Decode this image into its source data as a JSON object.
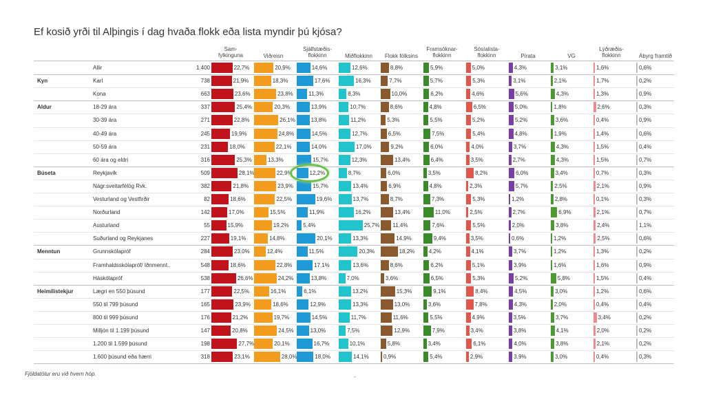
{
  "chart_data": {
    "type": "table",
    "title": "Ef kosið yrði til Alþingis í dag hvaða flokk eða lista myndir þú kjósa?",
    "footnote": "Fjöldatölur eru við hvern hóp.",
    "dash": "-",
    "parties": [
      {
        "name": "Sam-\nfylkinguna",
        "color": "#c0131c"
      },
      {
        "name": "Viðreisn",
        "color": "#f39c1e"
      },
      {
        "name": "Sjálfstæðis-\nflokkinn",
        "color": "#1f9ad6"
      },
      {
        "name": "Miðflokkinn",
        "color": "#22c4cb"
      },
      {
        "name": "Flokk fólksins",
        "color": "#8a5a2e"
      },
      {
        "name": "Framsóknar-\nflokkinn",
        "color": "#3a8a2a"
      },
      {
        "name": "Sósíalista-\nflokkinn",
        "color": "#e2574c"
      },
      {
        "name": "Pírata",
        "color": "#7a3ea8"
      },
      {
        "name": "VG",
        "color": "#4e9a32"
      },
      {
        "name": "Lýðræðis-\nflokkinn",
        "color": "#ec8a90"
      },
      {
        "name": "Ábyrg framtíð",
        "color": "#bbbbbb"
      }
    ],
    "rows": [
      {
        "group": "",
        "label": "Allir",
        "n": "1.400",
        "v": [
          22.7,
          20.9,
          14.6,
          12.6,
          8.8,
          5.9,
          5.0,
          4.3,
          3.1,
          1.6,
          0.6
        ]
      },
      {
        "group": "Kyn",
        "label": "Karl",
        "n": "738",
        "v": [
          21.9,
          18.3,
          17.6,
          16.3,
          7.7,
          5.7,
          5.3,
          3.1,
          2.1,
          1.7,
          0.2
        ]
      },
      {
        "group": "",
        "label": "Kona",
        "n": "663",
        "v": [
          23.6,
          23.8,
          11.3,
          8.3,
          10.0,
          6.2,
          4.6,
          5.6,
          4.3,
          1.3,
          0.9
        ]
      },
      {
        "group": "Aldur",
        "label": "18-29 ára",
        "n": "337",
        "v": [
          25.4,
          20.3,
          13.9,
          10.7,
          8.6,
          4.8,
          6.5,
          5.0,
          1.8,
          2.6,
          0.3
        ]
      },
      {
        "group": "",
        "label": "30-39 ára",
        "n": "271",
        "v": [
          22.8,
          26.1,
          13.8,
          11.2,
          5.3,
          5.5,
          5.2,
          5.2,
          3.6,
          0.4,
          0.9
        ]
      },
      {
        "group": "",
        "label": "40-49 ára",
        "n": "245",
        "v": [
          19.9,
          24.8,
          14.5,
          12.7,
          6.5,
          7.5,
          5.4,
          4.8,
          1.9,
          1.4,
          0.6
        ]
      },
      {
        "group": "",
        "label": "50-59 ára",
        "n": "231",
        "v": [
          18.0,
          22.1,
          14.0,
          17.0,
          9.2,
          6.0,
          4.0,
          3.7,
          4.3,
          1.5,
          0.4
        ]
      },
      {
        "group": "",
        "label": "60 ára og eldri",
        "n": "316",
        "v": [
          25.3,
          13.3,
          15.7,
          12.3,
          13.4,
          6.4,
          3.5,
          2.7,
          4.3,
          1.5,
          0.7
        ]
      },
      {
        "group": "Búseta",
        "label": "Reykjavík",
        "n": "509",
        "v": [
          28.1,
          22.9,
          12.2,
          8.7,
          6.0,
          3.5,
          8.2,
          6.0,
          3.4,
          0.7,
          0.3
        ]
      },
      {
        "group": "",
        "label": "Nágr.sveitarfélög Rvk.",
        "n": "382",
        "v": [
          21.8,
          23.9,
          15.7,
          13.4,
          6.9,
          4.8,
          2.3,
          5.7,
          2.5,
          2.1,
          0.9
        ]
      },
      {
        "group": "",
        "label": "Vesturland og Vestfirðir",
        "n": "82",
        "v": [
          18.6,
          22.5,
          19.6,
          13.7,
          8.7,
          7.3,
          5.3,
          1.2,
          2.8,
          0.1,
          0.3
        ]
      },
      {
        "group": "",
        "label": "Norðurland",
        "n": "142",
        "v": [
          17.0,
          15.5,
          11.9,
          16.2,
          13.4,
          11.0,
          2.5,
          2.7,
          6.9,
          2.1,
          0.7
        ]
      },
      {
        "group": "",
        "label": "Austurland",
        "n": "55",
        "v": [
          15.9,
          19.2,
          5.4,
          25.7,
          11.4,
          7.6,
          5.5,
          2.0,
          3.8,
          2.4,
          1.1
        ]
      },
      {
        "group": "",
        "label": "Suðurland og Reykjanes",
        "n": "227",
        "v": [
          19.1,
          14.8,
          20.1,
          13.3,
          14.9,
          9.4,
          3.5,
          0.6,
          1.2,
          2.5,
          0.6
        ]
      },
      {
        "group": "Menntun",
        "label": "Grunnskólapróf",
        "n": "284",
        "v": [
          23.0,
          12.4,
          11.5,
          20.3,
          18.2,
          4.2,
          4.1,
          3.7,
          1.2,
          1.3,
          0.2
        ]
      },
      {
        "group": "",
        "label": "Framhaldsskólapróf/ Iðnmennt..",
        "n": "548",
        "v": [
          18.6,
          22.8,
          17.1,
          13.6,
          8.6,
          6.2,
          5.1,
          3.9,
          1.6,
          1.6,
          0.9
        ]
      },
      {
        "group": "",
        "label": "Háskólapróf",
        "n": "538",
        "v": [
          26.6,
          24.2,
          13.8,
          7.0,
          3.6,
          6.5,
          5.3,
          5.2,
          5.8,
          1.5,
          0.4
        ]
      },
      {
        "group": "Heimilistekjur",
        "label": "Lægri en 550 þúsund",
        "n": "177",
        "v": [
          22.5,
          16.1,
          6.1,
          13.2,
          15.3,
          9.1,
          8.4,
          4.5,
          3.0,
          1.2,
          0.6
        ]
      },
      {
        "group": "",
        "label": "550 til 799 þúsund",
        "n": "165",
        "v": [
          23.9,
          18.6,
          12.9,
          13.3,
          13.0,
          3.6,
          7.8,
          4.3,
          2.0,
          0.4,
          0.4
        ]
      },
      {
        "group": "",
        "label": "800 til 999 þúsund",
        "n": "176",
        "v": [
          21.2,
          19.7,
          14.5,
          11.7,
          11.6,
          5.5,
          4.9,
          3.5,
          3.7,
          3.4,
          0.2
        ]
      },
      {
        "group": "",
        "label": "Milljón til 1.199 þúsund",
        "n": "147",
        "v": [
          20.8,
          24.5,
          13.0,
          7.5,
          12.9,
          7.9,
          3.4,
          3.8,
          4.1,
          2.0,
          0.2
        ]
      },
      {
        "group": "",
        "label": "1.200 til 1.599 þúsund",
        "n": "198",
        "v": [
          27.7,
          20.1,
          16.7,
          10.1,
          5.8,
          3.4,
          6.1,
          4.0,
          3.8,
          2.1,
          0.2
        ]
      },
      {
        "group": "",
        "label": "1.600 þúsund eða hærri",
        "n": "318",
        "v": [
          23.1,
          28.0,
          18.0,
          14.1,
          0.9,
          5.4,
          2.9,
          3.9,
          3.0,
          0.4,
          0.3
        ]
      }
    ],
    "highlight": {
      "row": 8,
      "party": 2
    }
  }
}
